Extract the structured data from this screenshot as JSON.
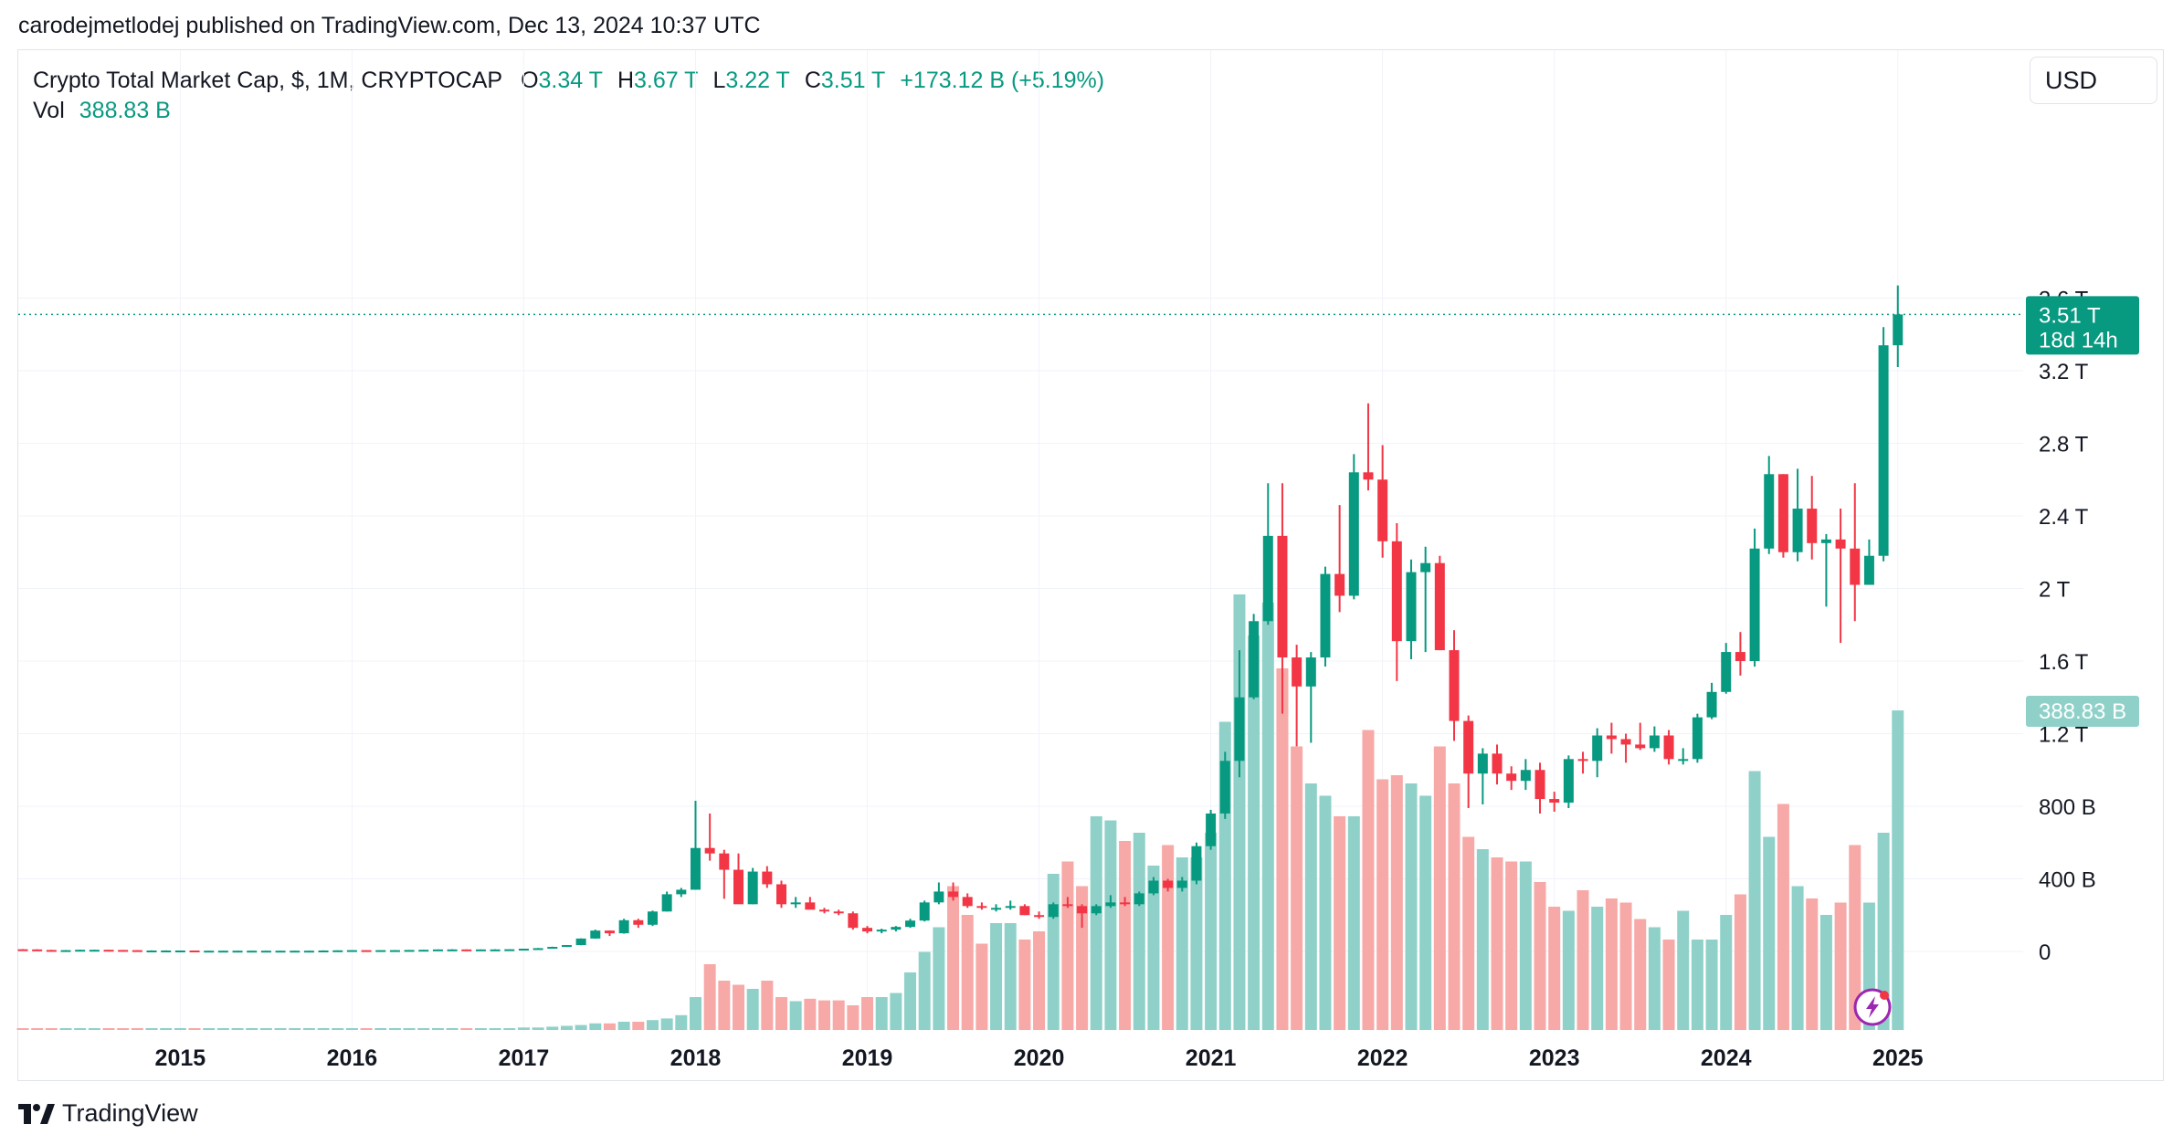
{
  "header": {
    "published": "carodejmetlodej published on TradingView.com, Dec 13, 2024 10:37 UTC"
  },
  "legend": {
    "symbol": "Crypto Total Market Cap, $, 1M, CRYPTOCAP",
    "open_key": "O",
    "open": "3.34 T",
    "high_key": "H",
    "high": "3.67 T",
    "low_key": "L",
    "low": "3.22 T",
    "close_key": "C",
    "close": "3.51 T",
    "change": "+173.12 B (+5.19%)",
    "vol_key": "Vol",
    "vol": "388.83 B"
  },
  "currency": "USD",
  "price_tag": {
    "value": "3.51 T",
    "countdown": "18d 14h"
  },
  "volume_tag": "388.83 B",
  "brand": "TradingView",
  "colors": {
    "up": "#089981",
    "down": "#f23645",
    "up_vol": "#8fd1c9",
    "down_vol": "#f7a9a7",
    "grid": "#f0f3fa"
  },
  "chart_data": {
    "type": "candlestick",
    "interval": "1M",
    "price_axis": {
      "ticks": [
        0,
        0.4,
        0.8,
        1.2,
        1.6,
        2.0,
        2.4,
        2.8,
        3.2,
        3.6
      ],
      "tick_labels": [
        "0",
        "400 B",
        "800 B",
        "1.2 T",
        "1.6 T",
        "2 T",
        "2.4 T",
        "2.8 T",
        "3.2 T",
        "3.6 T"
      ],
      "unit": "T USD"
    },
    "x_axis": {
      "labels": [
        "2015",
        "2016",
        "2017",
        "2018",
        "2019",
        "2020",
        "2021",
        "2022",
        "2023",
        "2024",
        "2025"
      ]
    },
    "grid": true,
    "start": "2014-02",
    "candles_ohlc_trillions": [
      [
        0.012,
        0.013,
        0.009,
        0.011
      ],
      [
        0.011,
        0.012,
        0.007,
        0.008
      ],
      [
        0.008,
        0.009,
        0.006,
        0.007
      ],
      [
        0.007,
        0.008,
        0.006,
        0.007
      ],
      [
        0.007,
        0.01,
        0.007,
        0.009
      ],
      [
        0.009,
        0.01,
        0.008,
        0.009
      ],
      [
        0.009,
        0.009,
        0.008,
        0.008
      ],
      [
        0.008,
        0.008,
        0.006,
        0.007
      ],
      [
        0.007,
        0.007,
        0.005,
        0.005
      ],
      [
        0.005,
        0.006,
        0.004,
        0.005
      ],
      [
        0.005,
        0.006,
        0.005,
        0.005
      ],
      [
        0.005,
        0.005,
        0.004,
        0.005
      ],
      [
        0.005,
        0.005,
        0.003,
        0.004
      ],
      [
        0.004,
        0.004,
        0.003,
        0.004
      ],
      [
        0.004,
        0.004,
        0.003,
        0.004
      ],
      [
        0.004,
        0.004,
        0.003,
        0.004
      ],
      [
        0.004,
        0.004,
        0.003,
        0.004
      ],
      [
        0.004,
        0.004,
        0.003,
        0.004
      ],
      [
        0.004,
        0.004,
        0.003,
        0.004
      ],
      [
        0.004,
        0.004,
        0.003,
        0.004
      ],
      [
        0.004,
        0.004,
        0.003,
        0.004
      ],
      [
        0.004,
        0.006,
        0.004,
        0.005
      ],
      [
        0.005,
        0.006,
        0.004,
        0.006
      ],
      [
        0.006,
        0.007,
        0.005,
        0.007
      ],
      [
        0.007,
        0.007,
        0.006,
        0.006
      ],
      [
        0.006,
        0.007,
        0.006,
        0.007
      ],
      [
        0.007,
        0.008,
        0.006,
        0.007
      ],
      [
        0.007,
        0.008,
        0.007,
        0.008
      ],
      [
        0.008,
        0.009,
        0.007,
        0.009
      ],
      [
        0.009,
        0.011,
        0.009,
        0.011
      ],
      [
        0.011,
        0.012,
        0.01,
        0.011
      ],
      [
        0.011,
        0.011,
        0.009,
        0.01
      ],
      [
        0.01,
        0.011,
        0.01,
        0.011
      ],
      [
        0.011,
        0.012,
        0.01,
        0.011
      ],
      [
        0.011,
        0.012,
        0.011,
        0.012
      ],
      [
        0.012,
        0.015,
        0.012,
        0.015
      ],
      [
        0.015,
        0.019,
        0.015,
        0.018
      ],
      [
        0.018,
        0.026,
        0.018,
        0.025
      ],
      [
        0.025,
        0.035,
        0.024,
        0.035
      ],
      [
        0.035,
        0.072,
        0.034,
        0.071
      ],
      [
        0.071,
        0.12,
        0.07,
        0.115
      ],
      [
        0.115,
        0.116,
        0.085,
        0.1
      ],
      [
        0.1,
        0.18,
        0.098,
        0.172
      ],
      [
        0.172,
        0.18,
        0.13,
        0.147
      ],
      [
        0.147,
        0.225,
        0.14,
        0.22
      ],
      [
        0.22,
        0.33,
        0.22,
        0.315
      ],
      [
        0.315,
        0.35,
        0.3,
        0.34
      ],
      [
        0.34,
        0.83,
        0.34,
        0.57
      ],
      [
        0.57,
        0.76,
        0.5,
        0.54
      ],
      [
        0.54,
        0.56,
        0.29,
        0.45
      ],
      [
        0.45,
        0.54,
        0.27,
        0.26
      ],
      [
        0.26,
        0.46,
        0.26,
        0.44
      ],
      [
        0.44,
        0.47,
        0.35,
        0.37
      ],
      [
        0.37,
        0.39,
        0.24,
        0.26
      ],
      [
        0.26,
        0.3,
        0.24,
        0.27
      ],
      [
        0.27,
        0.3,
        0.24,
        0.23
      ],
      [
        0.23,
        0.24,
        0.21,
        0.22
      ],
      [
        0.22,
        0.23,
        0.2,
        0.21
      ],
      [
        0.21,
        0.22,
        0.12,
        0.13
      ],
      [
        0.13,
        0.14,
        0.1,
        0.11
      ],
      [
        0.11,
        0.125,
        0.1,
        0.12
      ],
      [
        0.12,
        0.14,
        0.11,
        0.135
      ],
      [
        0.135,
        0.18,
        0.13,
        0.17
      ],
      [
        0.17,
        0.28,
        0.165,
        0.27
      ],
      [
        0.27,
        0.38,
        0.26,
        0.33
      ],
      [
        0.33,
        0.38,
        0.28,
        0.3
      ],
      [
        0.3,
        0.32,
        0.24,
        0.25
      ],
      [
        0.25,
        0.27,
        0.23,
        0.24
      ],
      [
        0.24,
        0.26,
        0.22,
        0.24
      ],
      [
        0.24,
        0.28,
        0.23,
        0.25
      ],
      [
        0.25,
        0.26,
        0.2,
        0.2
      ],
      [
        0.2,
        0.22,
        0.18,
        0.19
      ],
      [
        0.19,
        0.27,
        0.18,
        0.26
      ],
      [
        0.26,
        0.3,
        0.24,
        0.25
      ],
      [
        0.25,
        0.26,
        0.13,
        0.21
      ],
      [
        0.21,
        0.26,
        0.2,
        0.25
      ],
      [
        0.25,
        0.31,
        0.24,
        0.27
      ],
      [
        0.27,
        0.3,
        0.25,
        0.26
      ],
      [
        0.26,
        0.33,
        0.25,
        0.32
      ],
      [
        0.32,
        0.41,
        0.31,
        0.39
      ],
      [
        0.39,
        0.4,
        0.33,
        0.35
      ],
      [
        0.35,
        0.41,
        0.33,
        0.39
      ],
      [
        0.39,
        0.6,
        0.37,
        0.58
      ],
      [
        0.58,
        0.78,
        0.56,
        0.76
      ],
      [
        0.76,
        1.1,
        0.73,
        1.05
      ],
      [
        1.05,
        1.66,
        0.96,
        1.4
      ],
      [
        1.4,
        1.86,
        1.39,
        1.82
      ],
      [
        1.82,
        2.58,
        1.8,
        2.29
      ],
      [
        2.29,
        2.58,
        1.31,
        1.62
      ],
      [
        1.62,
        1.69,
        1.13,
        1.46
      ],
      [
        1.46,
        1.65,
        1.15,
        1.62
      ],
      [
        1.62,
        2.12,
        1.57,
        2.08
      ],
      [
        2.08,
        2.46,
        1.87,
        1.96
      ],
      [
        1.96,
        2.74,
        1.94,
        2.64
      ],
      [
        2.64,
        3.02,
        2.54,
        2.6
      ],
      [
        2.6,
        2.79,
        2.17,
        2.26
      ],
      [
        2.26,
        2.36,
        1.49,
        1.71
      ],
      [
        1.71,
        2.16,
        1.61,
        2.09
      ],
      [
        2.09,
        2.23,
        1.65,
        2.14
      ],
      [
        2.14,
        2.18,
        1.66,
        1.66
      ],
      [
        1.66,
        1.77,
        1.16,
        1.27
      ],
      [
        1.27,
        1.3,
        0.79,
        0.98
      ],
      [
        0.98,
        1.12,
        0.81,
        1.09
      ],
      [
        1.09,
        1.14,
        0.92,
        0.98
      ],
      [
        0.98,
        1.02,
        0.89,
        0.94
      ],
      [
        0.94,
        1.06,
        0.89,
        1.0
      ],
      [
        1.0,
        1.04,
        0.76,
        0.84
      ],
      [
        0.84,
        0.88,
        0.77,
        0.82
      ],
      [
        0.82,
        1.08,
        0.79,
        1.06
      ],
      [
        1.06,
        1.1,
        0.98,
        1.05
      ],
      [
        1.05,
        1.23,
        0.96,
        1.19
      ],
      [
        1.19,
        1.26,
        1.09,
        1.17
      ],
      [
        1.17,
        1.2,
        1.04,
        1.14
      ],
      [
        1.14,
        1.26,
        1.11,
        1.12
      ],
      [
        1.12,
        1.24,
        1.1,
        1.19
      ],
      [
        1.19,
        1.22,
        1.03,
        1.06
      ],
      [
        1.06,
        1.12,
        1.03,
        1.06
      ],
      [
        1.06,
        1.31,
        1.04,
        1.29
      ],
      [
        1.29,
        1.48,
        1.28,
        1.43
      ],
      [
        1.43,
        1.7,
        1.42,
        1.65
      ],
      [
        1.65,
        1.76,
        1.52,
        1.6
      ],
      [
        1.6,
        2.33,
        1.57,
        2.22
      ],
      [
        2.22,
        2.73,
        2.19,
        2.63
      ],
      [
        2.63,
        2.63,
        2.17,
        2.2
      ],
      [
        2.2,
        2.66,
        2.15,
        2.44
      ],
      [
        2.44,
        2.62,
        2.16,
        2.25
      ],
      [
        2.25,
        2.3,
        1.9,
        2.27
      ],
      [
        2.27,
        2.44,
        1.7,
        2.22
      ],
      [
        2.22,
        2.58,
        1.82,
        2.02
      ],
      [
        2.02,
        2.27,
        2.02,
        2.18
      ],
      [
        2.18,
        3.44,
        2.15,
        3.34
      ],
      [
        3.34,
        3.67,
        3.22,
        3.51
      ]
    ],
    "volume_billions": [
      2,
      2,
      2,
      2,
      2,
      2,
      2,
      2,
      2,
      2,
      2,
      2,
      2,
      2,
      2,
      2,
      2,
      2,
      2,
      2,
      2,
      2,
      2,
      2,
      2,
      2,
      2,
      2,
      2,
      2,
      2,
      2,
      2,
      2,
      2,
      3,
      3,
      4,
      5,
      6,
      8,
      8,
      10,
      10,
      12,
      14,
      18,
      40,
      80,
      60,
      55,
      50,
      60,
      40,
      35,
      38,
      36,
      36,
      30,
      40,
      40,
      45,
      70,
      95,
      125,
      175,
      140,
      105,
      130,
      130,
      110,
      120,
      190,
      205,
      175,
      260,
      255,
      230,
      240,
      200,
      225,
      210,
      210,
      240,
      375,
      530,
      480,
      520,
      440,
      345,
      300,
      285,
      260,
      260,
      365,
      305,
      310,
      300,
      285,
      345,
      300,
      235,
      220,
      210,
      205,
      205,
      180,
      150,
      145,
      170,
      150,
      160,
      155,
      135,
      125,
      110,
      145,
      110,
      110,
      140,
      165,
      315,
      235,
      275,
      175,
      160,
      140,
      155,
      225,
      155,
      240,
      388.83
    ],
    "last_price": 3.51,
    "last_volume": 388.83
  }
}
